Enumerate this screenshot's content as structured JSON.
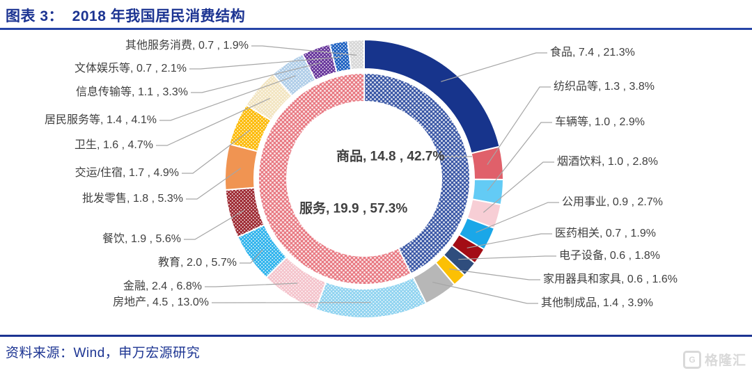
{
  "header": {
    "title": "图表 3：  2018 年我国居民消费结构"
  },
  "footer": {
    "source": "资料来源：Wind，申万宏源研究",
    "watermark_text": "格隆汇",
    "watermark_letter": "G"
  },
  "colors": {
    "title_navy": "#1c3492",
    "rule_blue": "#2644a6",
    "label_gray": "#3f3f3f",
    "leader_gray": "#a6a6a6",
    "background": "#ffffff"
  },
  "chart_data": {
    "type": "pie",
    "subtype": "double-ring-donut",
    "title": "2018 年我国居民消费结构",
    "legend_position": "none",
    "label_format": "{label}, {value} , {pct}%",
    "rings": {
      "inner": [
        {
          "label": "商品",
          "value": "14.8",
          "pct": "42.7",
          "color": "#3a57a5",
          "pattern": true
        },
        {
          "label": "服务",
          "value": "19.9",
          "pct": "57.3",
          "color": "#e87a83",
          "pattern": true
        }
      ],
      "outer": [
        {
          "label": "食品",
          "value": "7.4",
          "pct": "21.3",
          "color": "#17348c",
          "pattern": false
        },
        {
          "label": "纺织品等",
          "value": "1.3",
          "pct": "3.8",
          "color": "#e0606a",
          "pattern": false
        },
        {
          "label": "车辆等",
          "value": "1.0",
          "pct": "2.9",
          "color": "#63cbf5",
          "pattern": false
        },
        {
          "label": "烟酒饮料",
          "value": "1.0",
          "pct": "2.8",
          "color": "#f7ced5",
          "pattern": false
        },
        {
          "label": "公用事业",
          "value": "0.9",
          "pct": "2.7",
          "color": "#1aa7e8",
          "pattern": false
        },
        {
          "label": "医药相关",
          "value": "0.7",
          "pct": "1.9",
          "color": "#a30d15",
          "pattern": false
        },
        {
          "label": "电子设备",
          "value": "0.6",
          "pct": "1.8",
          "color": "#2f4d7d",
          "pattern": false
        },
        {
          "label": "家用器具和家具",
          "value": "0.6",
          "pct": "1.6",
          "color": "#fcc004",
          "pattern": false
        },
        {
          "label": "其他制成品",
          "value": "1.4",
          "pct": "3.9",
          "color": "#b7b7b7",
          "pattern": false
        },
        {
          "label": "房地产",
          "value": "4.5",
          "pct": "13.0",
          "color": "#8fd3f0",
          "pattern": true
        },
        {
          "label": "金融",
          "value": "2.4",
          "pct": "6.8",
          "color": "#f4c3cb",
          "pattern": true
        },
        {
          "label": "教育",
          "value": "2.0",
          "pct": "5.7",
          "color": "#2eb3ec",
          "pattern": true
        },
        {
          "label": "餐饮",
          "value": "1.9",
          "pct": "5.6",
          "color": "#9c2730",
          "pattern": true
        },
        {
          "label": "批发零售",
          "value": "1.8",
          "pct": "5.3",
          "color": "#f09452",
          "pattern": false
        },
        {
          "label": "交运/住宿",
          "value": "1.7",
          "pct": "4.9",
          "color": "#fcb900",
          "pattern": true
        },
        {
          "label": "卫生",
          "value": "1.6",
          "pct": "4.7",
          "color": "#f2e4c0",
          "pattern": true
        },
        {
          "label": "居民服务等",
          "value": "1.4",
          "pct": "4.1",
          "color": "#afcde8",
          "pattern": true
        },
        {
          "label": "信息传输等",
          "value": "1.1",
          "pct": "3.3",
          "color": "#65339a",
          "pattern": true
        },
        {
          "label": "文体娱乐等",
          "value": "0.7",
          "pct": "2.1",
          "color": "#1a5fc0",
          "pattern": true
        },
        {
          "label": "其他服务消费",
          "value": "0.7",
          "pct": "1.9",
          "color": "#d7d7d7",
          "pattern": true
        }
      ]
    }
  }
}
